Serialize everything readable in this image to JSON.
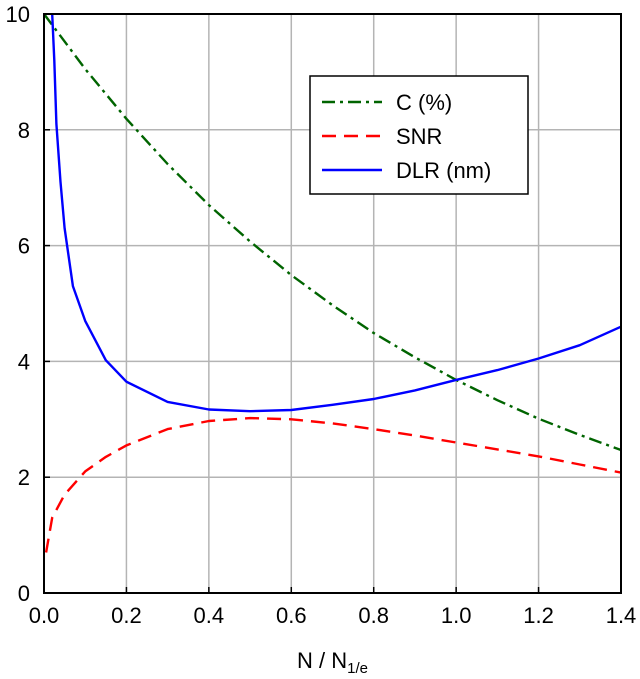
{
  "chart_data": {
    "type": "line",
    "title": "",
    "xlabel": "N / N",
    "xlabel_sub": "1/e",
    "ylabel": "",
    "xlim": [
      0,
      1.4
    ],
    "ylim": [
      0,
      10
    ],
    "xticks": [
      0,
      0.2,
      0.4,
      0.6,
      0.8,
      1.0,
      1.2,
      1.4
    ],
    "xtick_labels": [
      "0.0",
      "0.2",
      "0.4",
      "0.6",
      "0.8",
      "1.0",
      "1.2",
      "1.4"
    ],
    "yticks": [
      0,
      2,
      4,
      6,
      8,
      10
    ],
    "ytick_labels": [
      "0",
      "2",
      "4",
      "6",
      "8",
      "10"
    ],
    "grid": true,
    "legend_position": "top-right",
    "series": [
      {
        "name": "C (%)",
        "color": "#006400",
        "dash": "dashdot",
        "x": [
          0,
          0.1,
          0.2,
          0.3,
          0.4,
          0.5,
          0.6,
          0.7,
          0.8,
          0.9,
          1.0,
          1.1,
          1.2,
          1.3,
          1.4
        ],
        "y": [
          10.0,
          9.05,
          8.19,
          7.41,
          6.7,
          6.07,
          5.49,
          4.97,
          4.49,
          4.07,
          3.68,
          3.33,
          3.01,
          2.73,
          2.47
        ]
      },
      {
        "name": "SNR",
        "color": "#ff0000",
        "dash": "dash",
        "x": [
          0.005,
          0.02,
          0.05,
          0.1,
          0.15,
          0.2,
          0.3,
          0.4,
          0.5,
          0.6,
          0.7,
          0.8,
          0.9,
          1.0,
          1.1,
          1.2,
          1.3,
          1.4
        ],
        "y": [
          0.7,
          1.3,
          1.7,
          2.1,
          2.35,
          2.55,
          2.83,
          2.97,
          3.02,
          3.0,
          2.93,
          2.83,
          2.72,
          2.6,
          2.48,
          2.36,
          2.22,
          2.08
        ]
      },
      {
        "name": "DLR (nm)",
        "color": "#0000ff",
        "dash": "solid",
        "x": [
          0.02,
          0.025,
          0.03,
          0.04,
          0.05,
          0.07,
          0.1,
          0.15,
          0.2,
          0.3,
          0.4,
          0.5,
          0.6,
          0.7,
          0.8,
          0.9,
          1.0,
          1.1,
          1.2,
          1.3,
          1.4
        ],
        "y": [
          10.0,
          9.2,
          8.1,
          7.1,
          6.3,
          5.3,
          4.7,
          4.02,
          3.65,
          3.3,
          3.17,
          3.14,
          3.16,
          3.25,
          3.35,
          3.5,
          3.68,
          3.85,
          4.05,
          4.28,
          4.6
        ]
      }
    ]
  }
}
